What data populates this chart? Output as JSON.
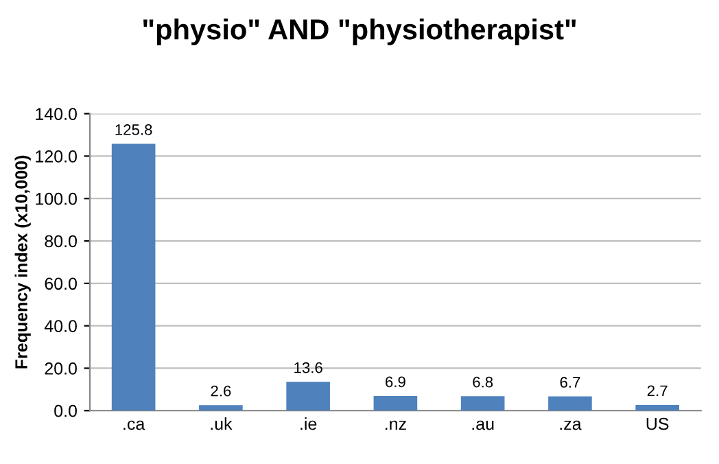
{
  "chart_data": {
    "type": "bar",
    "title": "\"physio\" AND \"physiotherapist\"",
    "ylabel": "Frequency index (x10,000)",
    "categories": [
      ".ca",
      ".uk",
      ".ie",
      ".nz",
      ".au",
      ".za",
      "US"
    ],
    "values": [
      125.8,
      2.6,
      13.6,
      6.9,
      6.8,
      6.7,
      2.7
    ],
    "color": "#4f81bd",
    "ylim": [
      0,
      140
    ],
    "yticks": [
      {
        "value": 0,
        "label": "0.0"
      },
      {
        "value": 20,
        "label": "20.0"
      },
      {
        "value": 40,
        "label": "40.0"
      },
      {
        "value": 60,
        "label": "60.0"
      },
      {
        "value": 80,
        "label": "80.0"
      },
      {
        "value": 100,
        "label": "100.0"
      },
      {
        "value": 120,
        "label": "120.0"
      },
      {
        "value": 140,
        "label": "140.0"
      }
    ],
    "grid": "y",
    "data_labels": true
  }
}
